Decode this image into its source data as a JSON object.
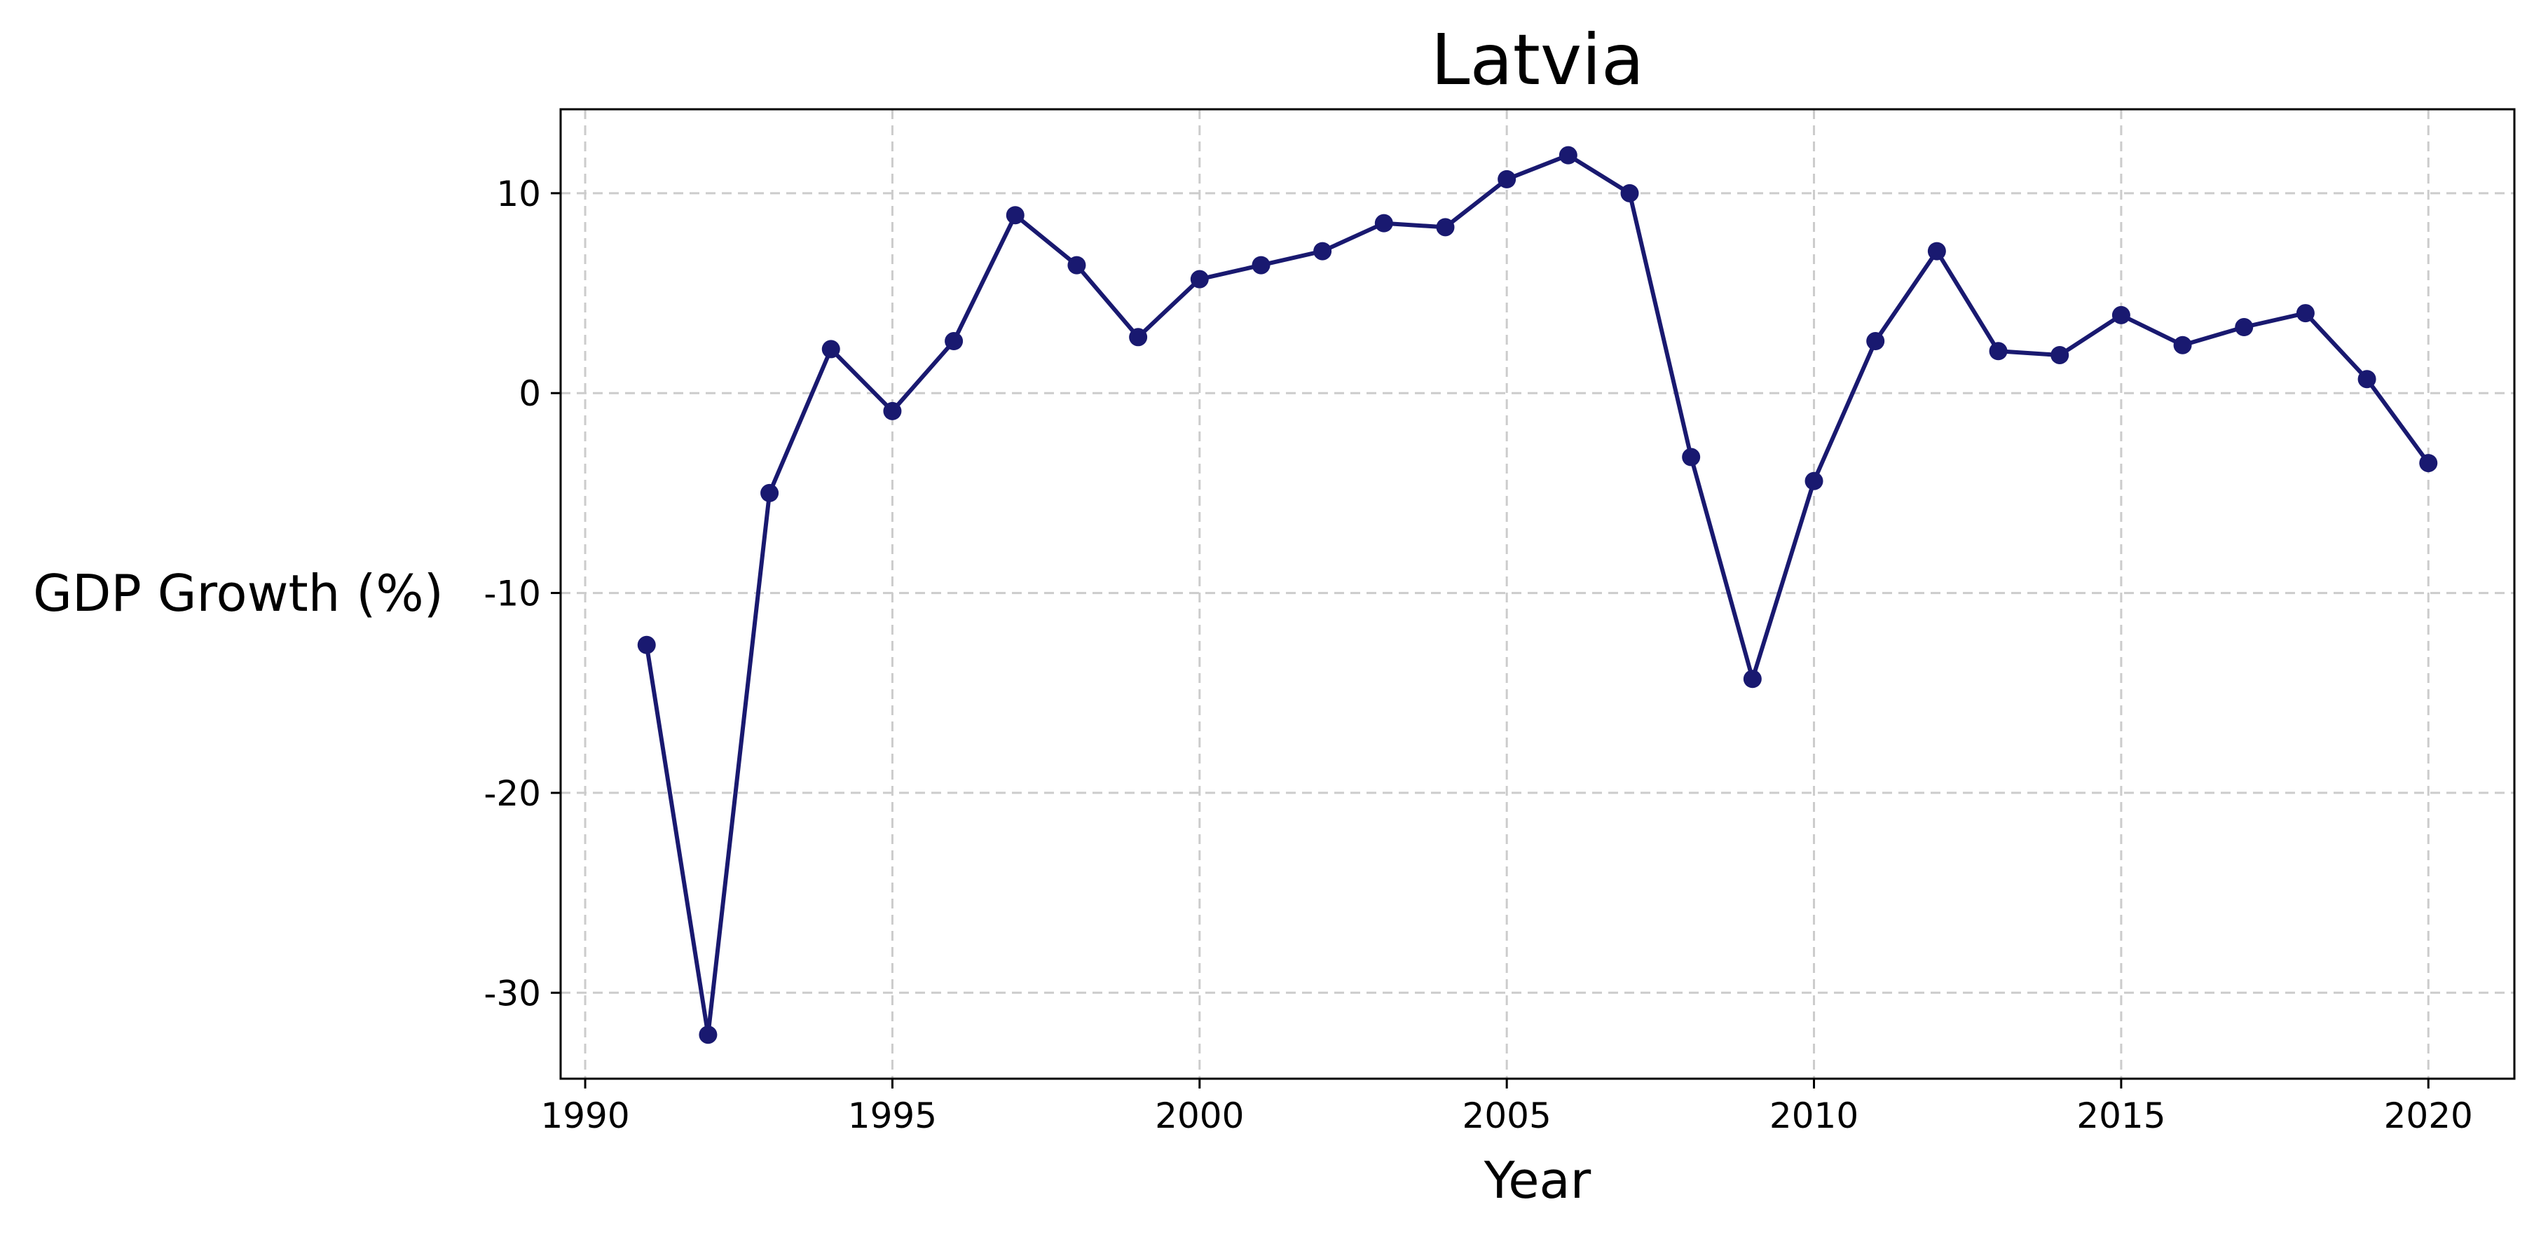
{
  "chart_data": {
    "type": "line",
    "title": "Latvia",
    "xlabel": "Year",
    "ylabel": "GDP Growth (%)",
    "xlim": [
      1989.6,
      2021.4
    ],
    "ylim": [
      -34.3,
      14.2
    ],
    "grid": true,
    "xticks": [
      1990,
      1995,
      2000,
      2005,
      2010,
      2015,
      2020
    ],
    "xtick_labels": [
      "1990",
      "1995",
      "2000",
      "2005",
      "2010",
      "2015",
      "2020"
    ],
    "yticks": [
      10,
      0,
      -10,
      -20,
      -30
    ],
    "ytick_labels": [
      "10",
      "0",
      "-10",
      "-20",
      "-30"
    ],
    "series": [
      {
        "color": "#191970",
        "x": [
          1991,
          1992,
          1993,
          1994,
          1995,
          1996,
          1997,
          1998,
          1999,
          2000,
          2001,
          2002,
          2003,
          2004,
          2005,
          2006,
          2007,
          2008,
          2009,
          2010,
          2011,
          2012,
          2013,
          2014,
          2015,
          2016,
          2017,
          2018,
          2019,
          2020
        ],
        "y": [
          -12.6,
          -32.1,
          -5.0,
          2.2,
          -0.9,
          2.6,
          8.9,
          6.4,
          2.8,
          5.7,
          6.4,
          7.1,
          8.5,
          8.3,
          10.7,
          11.9,
          10.0,
          -3.2,
          -14.3,
          -4.4,
          2.6,
          7.1,
          2.1,
          1.9,
          3.9,
          2.4,
          3.3,
          4.0,
          0.7,
          -3.5
        ]
      }
    ]
  }
}
